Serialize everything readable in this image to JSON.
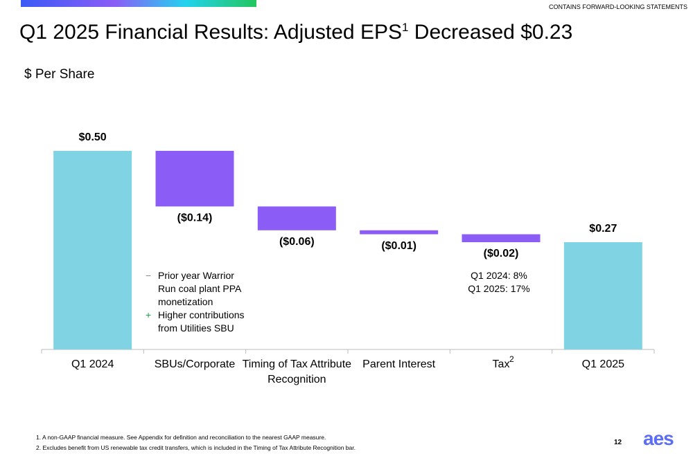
{
  "header": {
    "notice": "CONTAINS FORWARD-LOOKING STATEMENTS",
    "title": [
      "Q1 2025 Financial Results: Adjusted EPS",
      "1",
      " Decreased $0.23"
    ],
    "subtitle": "$ Per Share"
  },
  "chart_data": {
    "type": "waterfall",
    "categories": [
      "Q1 2024",
      "SBUs/Corporate",
      "Timing of Tax Attribute Recognition",
      "Parent Interest",
      "Tax",
      "Q1 2025"
    ],
    "category_notes": [
      null,
      null,
      null,
      null,
      "2",
      null
    ],
    "values": [
      0.5,
      -0.14,
      -0.06,
      -0.01,
      -0.02,
      0.27
    ],
    "value_labels": [
      "$0.50",
      "($0.14)",
      "($0.06)",
      "($0.01)",
      "($0.02)",
      "$0.27"
    ],
    "totals": [
      true,
      false,
      false,
      false,
      false,
      true
    ],
    "total_color": "#7fd3e3",
    "delta_color": "#8b5cf6",
    "annotations": {
      "sbu": [
        {
          "sign": "−",
          "text": "Prior year Warrior Run coal plant PPA monetization"
        },
        {
          "sign": "+",
          "text": "Higher contributions from Utilities SBU"
        }
      ],
      "tax": [
        "Q1 2024: 8%",
        "Q1 2025: 17%"
      ]
    }
  },
  "footnotes": [
    "1.   A non-GAAP financial measure.  See Appendix for definition and reconciliation to the nearest GAAP measure.",
    "2.   Excludes benefit from US renewable tax credit transfers, which is included in the Timing of Tax Attribute Recognition bar."
  ],
  "page_number": "12",
  "logo": "aes"
}
